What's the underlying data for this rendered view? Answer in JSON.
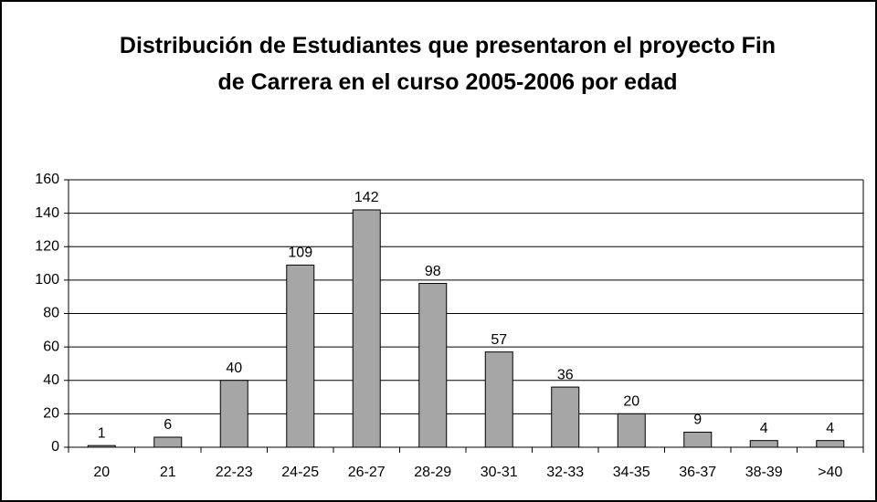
{
  "chart_data": {
    "type": "bar",
    "title": "Distribución de Estudiantes que presentaron el proyecto Fin de Carrera en el curso 2005-2006 por edad",
    "categories": [
      "20",
      "21",
      "22-23",
      "24-25",
      "26-27",
      "28-29",
      "30-31",
      "32-33",
      "34-35",
      "36-37",
      "38-39",
      ">40"
    ],
    "values": [
      1,
      6,
      40,
      109,
      142,
      98,
      57,
      36,
      20,
      9,
      4,
      4
    ],
    "color": "#a6a6a6",
    "ylim": [
      0,
      160
    ],
    "yticks": [
      0,
      20,
      40,
      60,
      80,
      100,
      120,
      140,
      160
    ],
    "grid": true
  }
}
